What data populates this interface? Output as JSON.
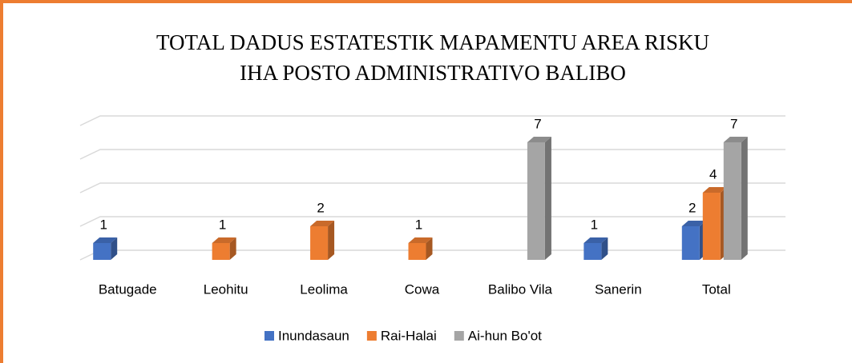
{
  "chart_data": {
    "type": "bar3d",
    "title": [
      "TOTAL DADUS ESTATESTIK MAPAMENTU AREA RISKU",
      "IHA POSTO ADMINISTRATIVO BALIBO"
    ],
    "categories": [
      "Batugade",
      "Leohitu",
      "Leolima",
      "Cowa",
      "Balibo Vila",
      "Sanerin",
      "Total"
    ],
    "series": [
      {
        "name": "Inundasaun",
        "color": "#4472c4",
        "values": [
          1,
          null,
          null,
          null,
          null,
          1,
          2
        ]
      },
      {
        "name": "Rai-Halai",
        "color": "#ed7d31",
        "values": [
          null,
          1,
          2,
          1,
          null,
          null,
          4
        ]
      },
      {
        "name": "Ai-hun Bo'ot",
        "color": "#a5a5a5",
        "values": [
          null,
          null,
          null,
          null,
          7,
          null,
          7
        ]
      }
    ],
    "ylim": [
      0,
      8
    ],
    "yticks": [
      0,
      2,
      4,
      6,
      8
    ],
    "grid": true,
    "legend": "bottom"
  }
}
